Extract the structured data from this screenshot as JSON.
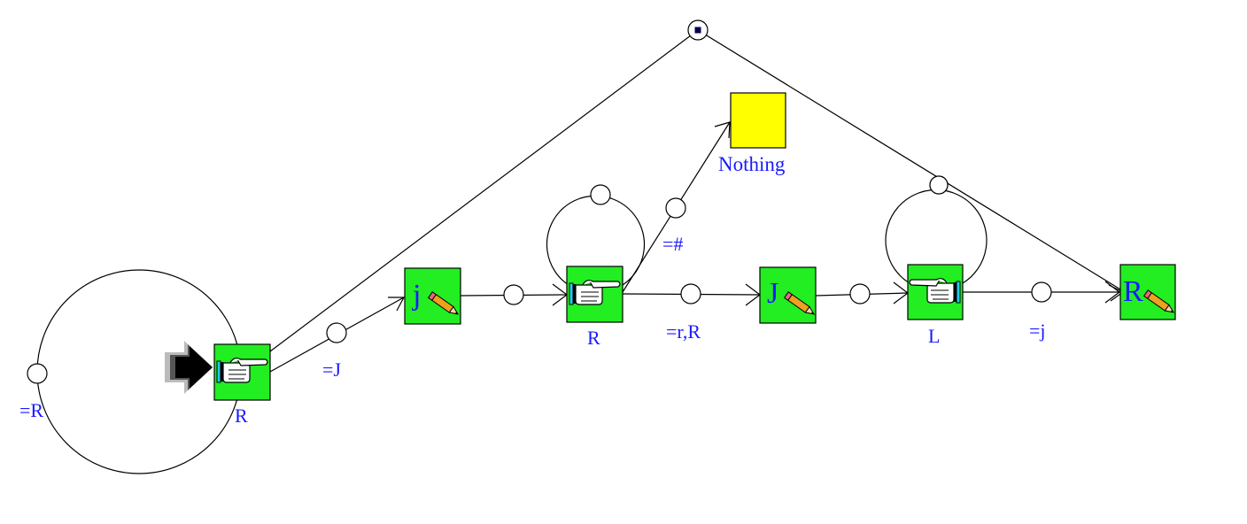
{
  "diagram": {
    "nodes": [
      {
        "id": "n1",
        "kind": "move",
        "icon": "pointing-hand-icon",
        "label": "R",
        "start": true
      },
      {
        "id": "n2",
        "kind": "write",
        "icon": "pencil-icon",
        "symbol": "j"
      },
      {
        "id": "n3",
        "kind": "move",
        "icon": "pointing-hand-icon",
        "label": "R"
      },
      {
        "id": "n4",
        "kind": "write",
        "icon": "pencil-icon",
        "symbol": "J"
      },
      {
        "id": "n5",
        "kind": "move",
        "icon": "pointing-hand-icon",
        "label": "L"
      },
      {
        "id": "n6",
        "kind": "write",
        "icon": "pencil-icon",
        "symbol": "R"
      },
      {
        "id": "n7",
        "kind": "halt",
        "label": "Nothing"
      }
    ],
    "edges": [
      {
        "from": "n1",
        "to": "n1",
        "label": "=R"
      },
      {
        "from": "n1",
        "to": "n2",
        "label": "=J"
      },
      {
        "from": "n2",
        "to": "n3",
        "label": ""
      },
      {
        "from": "n3",
        "to": "n3",
        "label": ""
      },
      {
        "from": "n3",
        "to": "n7",
        "label": "=#"
      },
      {
        "from": "n3",
        "to": "n4",
        "label": "=r,R"
      },
      {
        "from": "n4",
        "to": "n5",
        "label": ""
      },
      {
        "from": "n5",
        "to": "n5",
        "label": ""
      },
      {
        "from": "n5",
        "to": "n6",
        "label": "=j"
      },
      {
        "from": "n1",
        "to": "n6",
        "label": ""
      }
    ],
    "colors": {
      "node_fill": "#22ee22",
      "halt_fill": "#ffff00",
      "label": "#1a1aff",
      "line": "#000000",
      "cuff": "#22ccee"
    }
  }
}
